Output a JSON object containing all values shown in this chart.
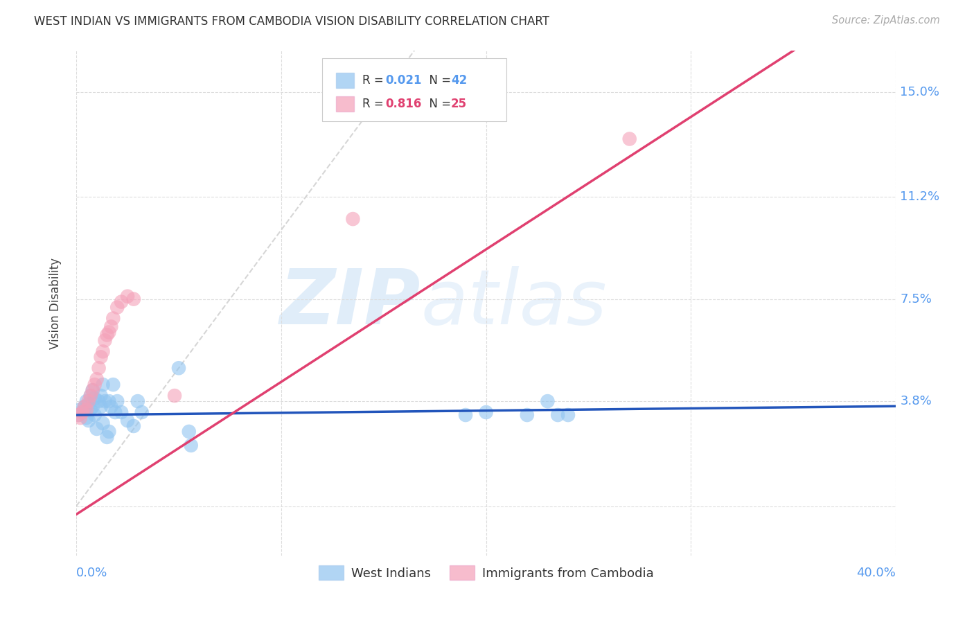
{
  "title": "WEST INDIAN VS IMMIGRANTS FROM CAMBODIA VISION DISABILITY CORRELATION CHART",
  "source": "Source: ZipAtlas.com",
  "ylabel": "Vision Disability",
  "ytick_vals": [
    0.0,
    0.038,
    0.075,
    0.112,
    0.15
  ],
  "ytick_labels": [
    "",
    "3.8%",
    "7.5%",
    "11.2%",
    "15.0%"
  ],
  "xtick_vals": [
    0.0,
    0.1,
    0.2,
    0.3,
    0.4
  ],
  "xlim": [
    0.0,
    0.4
  ],
  "ylim": [
    -0.018,
    0.165
  ],
  "watermark_zip": "ZIP",
  "watermark_atlas": "atlas",
  "blue_color": "#90c4f0",
  "pink_color": "#f4a0b8",
  "blue_line_color": "#2255bb",
  "pink_line_color": "#e04070",
  "diagonal_color": "#cccccc",
  "blue_line_slope": 0.008,
  "blue_line_intercept": 0.033,
  "pink_line_slope": 0.48,
  "pink_line_intercept": -0.003,
  "west_indians_x": [
    0.001,
    0.002,
    0.003,
    0.004,
    0.005,
    0.005,
    0.006,
    0.006,
    0.007,
    0.007,
    0.008,
    0.008,
    0.009,
    0.009,
    0.01,
    0.011,
    0.012,
    0.012,
    0.013,
    0.013,
    0.014,
    0.015,
    0.016,
    0.016,
    0.017,
    0.018,
    0.019,
    0.02,
    0.022,
    0.025,
    0.028,
    0.03,
    0.032,
    0.05,
    0.055,
    0.056,
    0.19,
    0.2,
    0.22,
    0.23,
    0.235,
    0.24
  ],
  "west_indians_y": [
    0.033,
    0.035,
    0.034,
    0.036,
    0.038,
    0.032,
    0.037,
    0.031,
    0.035,
    0.04,
    0.036,
    0.042,
    0.039,
    0.033,
    0.028,
    0.038,
    0.036,
    0.04,
    0.03,
    0.044,
    0.038,
    0.025,
    0.027,
    0.038,
    0.036,
    0.044,
    0.034,
    0.038,
    0.034,
    0.031,
    0.029,
    0.038,
    0.034,
    0.05,
    0.027,
    0.022,
    0.033,
    0.034,
    0.033,
    0.038,
    0.033,
    0.033
  ],
  "cambodia_x": [
    0.001,
    0.002,
    0.003,
    0.004,
    0.005,
    0.006,
    0.007,
    0.008,
    0.009,
    0.01,
    0.011,
    0.012,
    0.013,
    0.014,
    0.015,
    0.016,
    0.017,
    0.018,
    0.02,
    0.022,
    0.025,
    0.028,
    0.048,
    0.135,
    0.27
  ],
  "cambodia_y": [
    0.033,
    0.032,
    0.034,
    0.036,
    0.035,
    0.038,
    0.04,
    0.042,
    0.044,
    0.046,
    0.05,
    0.054,
    0.056,
    0.06,
    0.062,
    0.063,
    0.065,
    0.068,
    0.072,
    0.074,
    0.076,
    0.075,
    0.04,
    0.104,
    0.133
  ]
}
